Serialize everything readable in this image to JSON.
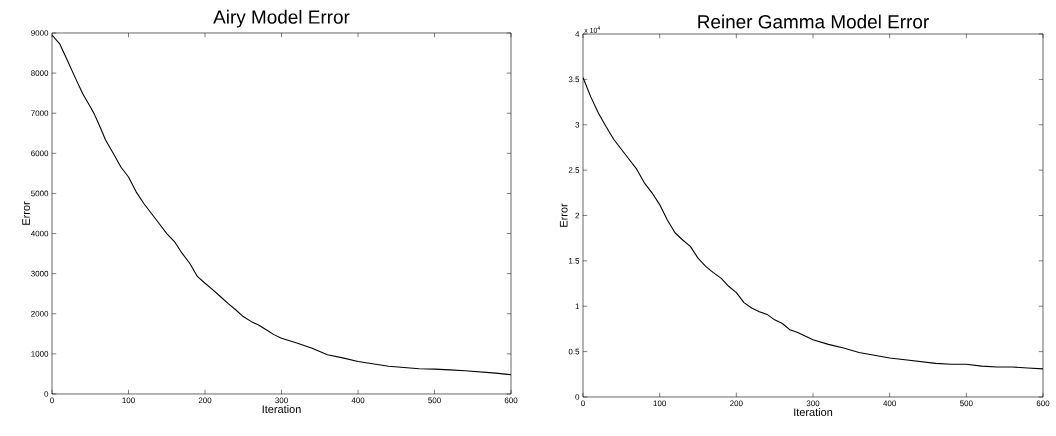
{
  "chart_data": [
    {
      "type": "line",
      "title": "Airy Model Error",
      "xlabel": "Iteration",
      "ylabel": "Error",
      "color": "#000000",
      "x": [
        0,
        10,
        20,
        30,
        40,
        50,
        55,
        60,
        70,
        80,
        90,
        100,
        110,
        120,
        130,
        140,
        150,
        160,
        170,
        180,
        190,
        200,
        210,
        220,
        230,
        240,
        250,
        260,
        270,
        280,
        290,
        300,
        320,
        340,
        360,
        380,
        400,
        420,
        440,
        460,
        480,
        500,
        520,
        540,
        560,
        580,
        600
      ],
      "values": [
        8950,
        8730,
        8320,
        7900,
        7490,
        7160,
        6990,
        6780,
        6330,
        6000,
        5660,
        5410,
        5040,
        4750,
        4500,
        4250,
        4000,
        3800,
        3510,
        3260,
        2930,
        2760,
        2600,
        2430,
        2260,
        2100,
        1930,
        1810,
        1720,
        1600,
        1480,
        1390,
        1270,
        1140,
        980,
        900,
        810,
        750,
        690,
        660,
        630,
        620,
        600,
        580,
        550,
        520,
        480
      ],
      "xlim": [
        0,
        600
      ],
      "ylim": [
        0,
        9000
      ],
      "xticks": [
        0,
        100,
        200,
        300,
        400,
        500,
        600
      ],
      "yticks": [
        0,
        1000,
        2000,
        3000,
        4000,
        5000,
        6000,
        7000,
        8000,
        9000
      ]
    },
    {
      "type": "line",
      "title": "Reiner Gamma Model Error",
      "xlabel": "Iteration",
      "ylabel": "Error",
      "color": "#000000",
      "annotations": [
        "x 10$^{4}$"
      ],
      "x": [
        0,
        10,
        20,
        30,
        40,
        50,
        60,
        70,
        80,
        90,
        100,
        110,
        120,
        130,
        140,
        150,
        160,
        170,
        180,
        190,
        200,
        210,
        220,
        230,
        240,
        250,
        260,
        270,
        280,
        300,
        320,
        340,
        360,
        380,
        400,
        420,
        440,
        460,
        480,
        500,
        520,
        540,
        560,
        580,
        600
      ],
      "values": [
        3.52,
        3.31,
        3.13,
        2.98,
        2.84,
        2.73,
        2.62,
        2.51,
        2.36,
        2.25,
        2.12,
        1.95,
        1.81,
        1.73,
        1.66,
        1.53,
        1.44,
        1.37,
        1.31,
        1.22,
        1.15,
        1.04,
        0.98,
        0.94,
        0.91,
        0.85,
        0.81,
        0.74,
        0.71,
        0.63,
        0.58,
        0.54,
        0.49,
        0.46,
        0.43,
        0.41,
        0.39,
        0.37,
        0.36,
        0.36,
        0.34,
        0.33,
        0.33,
        0.32,
        0.31
      ],
      "xlim": [
        0,
        600
      ],
      "ylim": [
        0,
        4
      ],
      "xticks": [
        0,
        100,
        200,
        300,
        400,
        500,
        600
      ],
      "yticks": [
        0,
        0.5,
        1,
        1.5,
        2,
        2.5,
        3,
        3.5,
        4
      ]
    }
  ]
}
